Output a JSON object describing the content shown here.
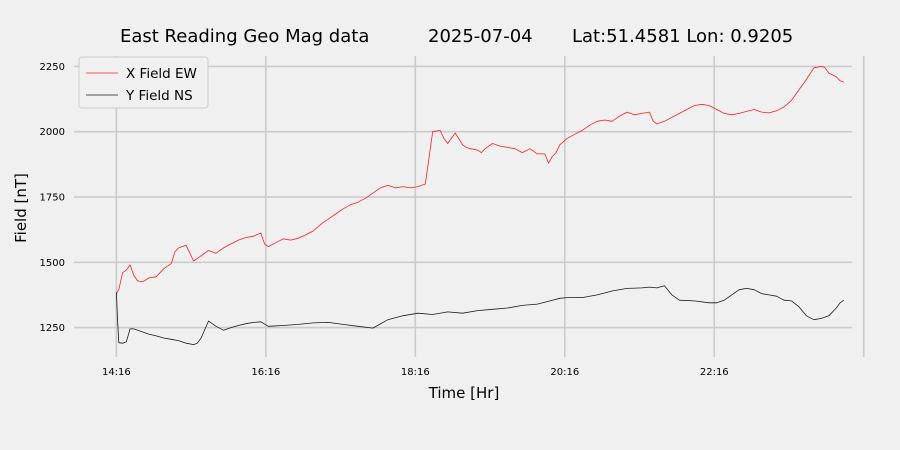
{
  "chart_data": {
    "type": "line",
    "title": {
      "name": "East Reading Geo Mag data",
      "date": "2025-07-04",
      "location": "Lat:51.4581  Lon: 0.9205"
    },
    "xlabel": "Time  [Hr]",
    "ylabel": "Field  [nT]",
    "x_unit": "hours since 00:00 (2025-07-04)",
    "xlim": [
      13.7,
      24.15
    ],
    "ylim": [
      1145,
      2290
    ],
    "x_ticks": [
      {
        "value": 14.267,
        "label": "14:16"
      },
      {
        "value": 16.267,
        "label": "16:16"
      },
      {
        "value": 18.267,
        "label": "18:16"
      },
      {
        "value": 20.267,
        "label": "20:16"
      },
      {
        "value": 22.267,
        "label": "22:16"
      }
    ],
    "x_grid_extra": [
      24.267
    ],
    "y_ticks": [
      {
        "value": 1250,
        "label": "1250"
      },
      {
        "value": 1500,
        "label": "1500"
      },
      {
        "value": 1750,
        "label": "1750"
      },
      {
        "value": 2000,
        "label": "2000"
      },
      {
        "value": 2250,
        "label": "2250"
      }
    ],
    "grid": true,
    "legend_position": "top-left",
    "series": [
      {
        "name": "X Field EW",
        "color": "#ff2020",
        "x": [
          14.267,
          14.3,
          14.35,
          14.4,
          14.45,
          14.5,
          14.55,
          14.6,
          14.65,
          14.7,
          14.8,
          14.9,
          15.0,
          15.05,
          15.1,
          15.2,
          15.3,
          15.4,
          15.5,
          15.6,
          15.7,
          15.8,
          15.9,
          16.0,
          16.1,
          16.2,
          16.25,
          16.3,
          16.4,
          16.5,
          16.6,
          16.7,
          16.8,
          16.9,
          17.0,
          17.1,
          17.2,
          17.3,
          17.4,
          17.5,
          17.6,
          17.7,
          17.8,
          17.9,
          18.0,
          18.1,
          18.2,
          18.3,
          18.4,
          18.5,
          18.6,
          18.65,
          18.7,
          18.8,
          18.9,
          18.95,
          19.0,
          19.1,
          19.15,
          19.2,
          19.3,
          19.4,
          19.5,
          19.6,
          19.7,
          19.8,
          19.9,
          20.0,
          20.05,
          20.1,
          20.15,
          20.2,
          20.3,
          20.4,
          20.5,
          20.6,
          20.7,
          20.8,
          20.9,
          21.0,
          21.1,
          21.2,
          21.3,
          21.4,
          21.45,
          21.5,
          21.6,
          21.7,
          21.8,
          21.9,
          22.0,
          22.1,
          22.2,
          22.3,
          22.4,
          22.5,
          22.6,
          22.7,
          22.8,
          22.9,
          23.0,
          23.1,
          23.2,
          23.3,
          23.4,
          23.5,
          23.6,
          23.7,
          23.75,
          23.8,
          23.9,
          23.95,
          24.0
        ],
        "y": [
          1380,
          1395,
          1460,
          1470,
          1490,
          1450,
          1430,
          1425,
          1430,
          1440,
          1445,
          1475,
          1495,
          1540,
          1555,
          1565,
          1505,
          1525,
          1545,
          1535,
          1555,
          1570,
          1585,
          1595,
          1600,
          1612,
          1570,
          1560,
          1575,
          1590,
          1585,
          1592,
          1605,
          1620,
          1645,
          1665,
          1685,
          1705,
          1720,
          1730,
          1745,
          1765,
          1785,
          1795,
          1785,
          1790,
          1785,
          1790,
          1800,
          2000,
          2005,
          1975,
          1955,
          1995,
          1950,
          1940,
          1935,
          1930,
          1920,
          1935,
          1955,
          1945,
          1940,
          1935,
          1920,
          1935,
          1915,
          1915,
          1880,
          1905,
          1920,
          1950,
          1975,
          1990,
          2005,
          2025,
          2040,
          2045,
          2040,
          2060,
          2075,
          2065,
          2070,
          2075,
          2040,
          2030,
          2040,
          2055,
          2070,
          2085,
          2100,
          2105,
          2100,
          2085,
          2070,
          2065,
          2070,
          2078,
          2085,
          2075,
          2072,
          2080,
          2095,
          2120,
          2160,
          2200,
          2245,
          2250,
          2245,
          2225,
          2210,
          2195,
          2190
        ]
      },
      {
        "name": "Y Field NS",
        "color": "#1a1a1a",
        "x": [
          14.267,
          14.28,
          14.3,
          14.35,
          14.4,
          14.45,
          14.5,
          14.6,
          14.7,
          14.8,
          14.9,
          15.0,
          15.1,
          15.2,
          15.3,
          15.35,
          15.4,
          15.5,
          15.6,
          15.7,
          15.8,
          15.9,
          16.0,
          16.1,
          16.2,
          16.3,
          16.5,
          16.7,
          16.9,
          17.1,
          17.3,
          17.5,
          17.7,
          17.9,
          18.1,
          18.3,
          18.5,
          18.7,
          18.9,
          19.1,
          19.3,
          19.5,
          19.7,
          19.9,
          20.1,
          20.2,
          20.3,
          20.5,
          20.7,
          20.9,
          21.1,
          21.3,
          21.4,
          21.5,
          21.6,
          21.7,
          21.8,
          22.0,
          22.2,
          22.3,
          22.4,
          22.5,
          22.6,
          22.7,
          22.8,
          22.9,
          23.0,
          23.1,
          23.2,
          23.3,
          23.4,
          23.5,
          23.6,
          23.7,
          23.8,
          23.9,
          23.95,
          24.0
        ],
        "y": [
          1385,
          1300,
          1192,
          1190,
          1195,
          1245,
          1245,
          1235,
          1225,
          1218,
          1210,
          1205,
          1200,
          1190,
          1185,
          1190,
          1210,
          1275,
          1255,
          1240,
          1250,
          1258,
          1265,
          1270,
          1272,
          1255,
          1258,
          1262,
          1268,
          1270,
          1262,
          1255,
          1248,
          1280,
          1295,
          1305,
          1300,
          1310,
          1305,
          1315,
          1320,
          1325,
          1335,
          1340,
          1355,
          1362,
          1365,
          1365,
          1375,
          1390,
          1400,
          1402,
          1405,
          1402,
          1410,
          1375,
          1355,
          1352,
          1345,
          1345,
          1355,
          1375,
          1395,
          1400,
          1395,
          1380,
          1375,
          1370,
          1355,
          1352,
          1330,
          1295,
          1280,
          1285,
          1295,
          1325,
          1345,
          1355
        ]
      }
    ]
  }
}
